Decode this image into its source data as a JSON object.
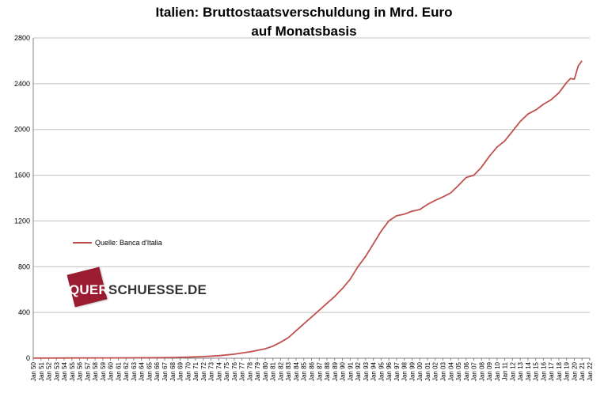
{
  "chart_data": {
    "type": "line",
    "title": "Italien: Bruttostaatsverschuldung  in Mrd. Euro",
    "subtitle": "auf Monatsbasis",
    "xlabel": "",
    "ylabel": "",
    "ylim": [
      0,
      2800
    ],
    "yticks": [
      0,
      400,
      800,
      1200,
      1600,
      2000,
      2400,
      2800
    ],
    "xlim": [
      1950,
      2022
    ],
    "xtick_labels": [
      "Jan 50",
      "Jan 51",
      "Jan 52",
      "Jan 53",
      "Jan 54",
      "Jan 55",
      "Jan 56",
      "Jan 57",
      "Jan 58",
      "Jan 59",
      "Jan 60",
      "Jan 61",
      "Jan 62",
      "Jan 63",
      "Jan 64",
      "Jan 65",
      "Jan 66",
      "Jan 67",
      "Jan 68",
      "Jan 69",
      "Jan 70",
      "Jan 71",
      "Jan 72",
      "Jan 73",
      "Jan 74",
      "Jan 75",
      "Jan 76",
      "Jan 77",
      "Jan 78",
      "Jan 79",
      "Jan 80",
      "Jan 81",
      "Jan 82",
      "Jan 83",
      "Jan 84",
      "Jan 85",
      "Jan 86",
      "Jan 87",
      "Jan 88",
      "Jan 89",
      "Jan 90",
      "Jan 91",
      "Jan 92",
      "Jan 93",
      "Jan 94",
      "Jan 95",
      "Jan 96",
      "Jan 97",
      "Jan 98",
      "Jan 99",
      "Jan 00",
      "Jan 01",
      "Jan 02",
      "Jan 03",
      "Jan 04",
      "Jan 05",
      "Jan 06",
      "Jan 07",
      "Jan 08",
      "Jan 09",
      "Jan 10",
      "Jan 11",
      "Jan 12",
      "Jan 13",
      "Jan 14",
      "Jan 15",
      "Jan 16",
      "Jan 17",
      "Jan 18",
      "Jan 19",
      "Jan 20",
      "Jan 21",
      "Jan 22"
    ],
    "grid": true,
    "legend": "left",
    "series": [
      {
        "name": "Quelle: Banca d'Italia",
        "color": "#c0504d",
        "x": [
          1950,
          1955,
          1960,
          1965,
          1968,
          1970,
          1972,
          1974,
          1976,
          1978,
          1980,
          1981,
          1982,
          1983,
          1984,
          1985,
          1986,
          1987,
          1988,
          1989,
          1990,
          1991,
          1992,
          1993,
          1994,
          1995,
          1996,
          1997,
          1998,
          1999,
          2000,
          2001,
          2002,
          2003,
          2004,
          2005,
          2006,
          2007,
          2008,
          2009,
          2010,
          2011,
          2012,
          2013,
          2014,
          2015,
          2016,
          2017,
          2018,
          2019,
          2019.5,
          2020,
          2020.5,
          2021
        ],
        "values": [
          1,
          2,
          3,
          4,
          6,
          9,
          14,
          22,
          35,
          55,
          82,
          105,
          140,
          180,
          240,
          300,
          360,
          420,
          480,
          540,
          610,
          690,
          800,
          890,
          1000,
          1110,
          1200,
          1245,
          1260,
          1285,
          1300,
          1345,
          1380,
          1410,
          1445,
          1510,
          1580,
          1600,
          1670,
          1765,
          1845,
          1900,
          1985,
          2070,
          2135,
          2170,
          2220,
          2260,
          2320,
          2410,
          2445,
          2440,
          2555,
          2600
        ]
      }
    ]
  },
  "legend": {
    "label": "Quelle: Banca d'Italia"
  },
  "logo": {
    "part_a": "QUER",
    "part_b": "SCHUESSE.DE"
  }
}
